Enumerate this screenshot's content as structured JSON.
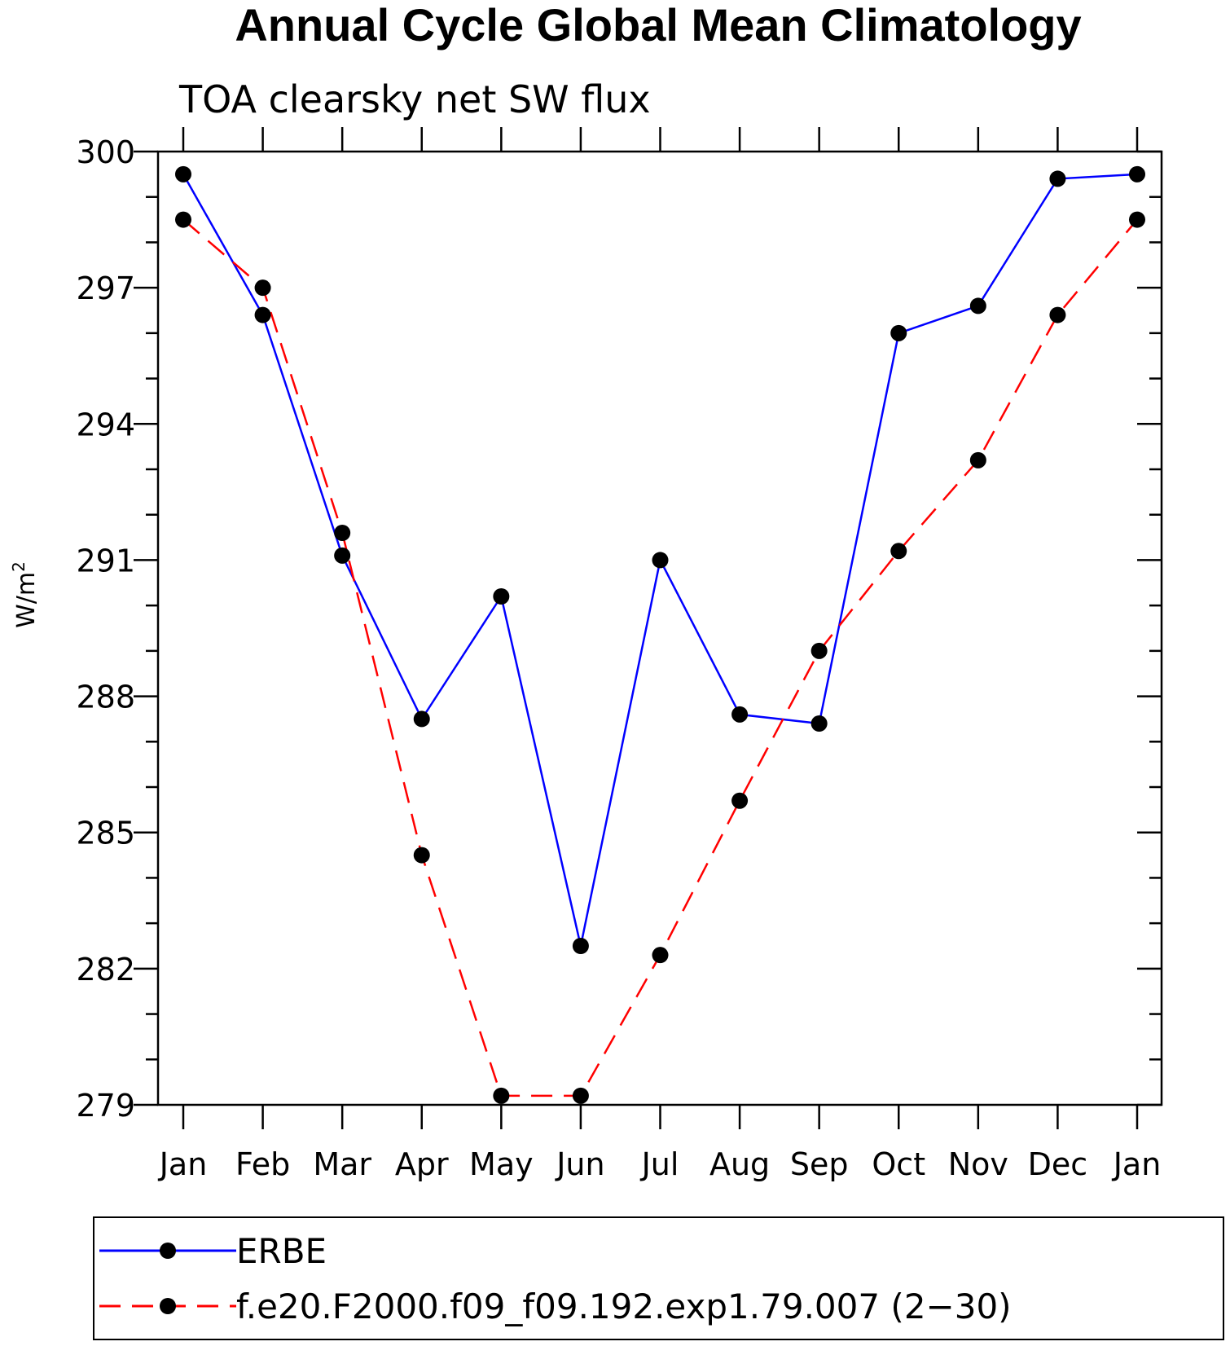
{
  "chart_data": {
    "type": "line",
    "title": "Annual Cycle Global Mean Climatology",
    "subtitle": "TOA clearsky net SW flux",
    "ylabel": "W/m",
    "ylabel_superscript": "2",
    "xlabel": "",
    "categories": [
      "Jan",
      "Feb",
      "Mar",
      "Apr",
      "May",
      "Jun",
      "Jul",
      "Aug",
      "Sep",
      "Oct",
      "Nov",
      "Dec",
      "Jan"
    ],
    "ylim": [
      279,
      300
    ],
    "yticks": [
      300,
      297,
      294,
      291,
      288,
      285,
      282,
      279
    ],
    "ytick_labels": [
      "300",
      "297",
      "294",
      "291",
      "288",
      "285",
      "282",
      "279"
    ],
    "grid": false,
    "legend_position": "bottom",
    "series": [
      {
        "name": "ERBE",
        "color": "#0000ff",
        "dash": "solid",
        "marker": "filled-circle",
        "values": [
          299.5,
          296.4,
          291.1,
          287.5,
          290.2,
          282.5,
          291.0,
          287.6,
          287.4,
          296.0,
          296.6,
          299.4,
          299.5
        ]
      },
      {
        "name": "f.e20.F2000.f09_f09.192.exp1.79.007 (2−30)",
        "color": "#ff0000",
        "dash": "dashed",
        "marker": "filled-circle",
        "values": [
          298.5,
          297.0,
          291.6,
          284.5,
          279.2,
          279.2,
          282.3,
          285.7,
          289.0,
          291.2,
          293.2,
          296.4,
          298.5
        ]
      }
    ]
  }
}
